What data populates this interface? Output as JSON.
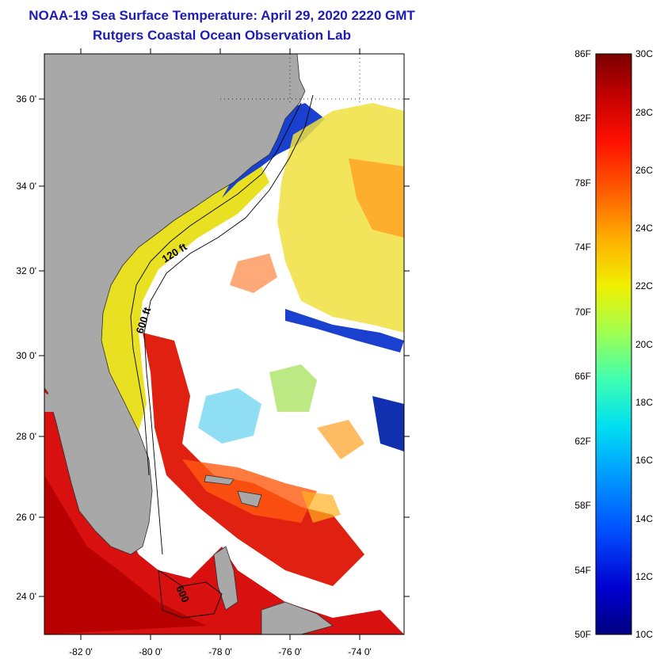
{
  "title": {
    "line1": "NOAA-19 Sea Surface Temperature:  April 29, 2020 2220 GMT",
    "line2": "Rutgers Coastal Ocean Observation Lab"
  },
  "map": {
    "lon_ticks": [
      "-82 0'",
      "-80 0'",
      "-78 0'",
      "-76 0'",
      "-74 0'"
    ],
    "lat_ticks": [
      "36 0'",
      "34 0'",
      "32 0'",
      "30 0'",
      "28 0'",
      "26 0'",
      "24 0'"
    ],
    "contours": [
      "120 ft",
      "600 ft",
      "600"
    ]
  },
  "colorbar": {
    "fahrenheit_labels": [
      "86F",
      "82F",
      "78F",
      "74F",
      "70F",
      "66F",
      "62F",
      "58F",
      "54F",
      "50F"
    ],
    "celsius_labels": [
      "30C",
      "28C",
      "26C",
      "24C",
      "22C",
      "20C",
      "18C",
      "16C",
      "14C",
      "12C",
      "10C"
    ],
    "stops": [
      "#000080",
      "#0000d0",
      "#0050ff",
      "#00a0ff",
      "#00e0f0",
      "#40ffb0",
      "#a0ff50",
      "#f0f000",
      "#ffb000",
      "#ff6000",
      "#ff1000",
      "#c00000",
      "#7a0000"
    ]
  },
  "colors": {
    "land": "#a8a8a8",
    "title": "#1c1cb4"
  }
}
